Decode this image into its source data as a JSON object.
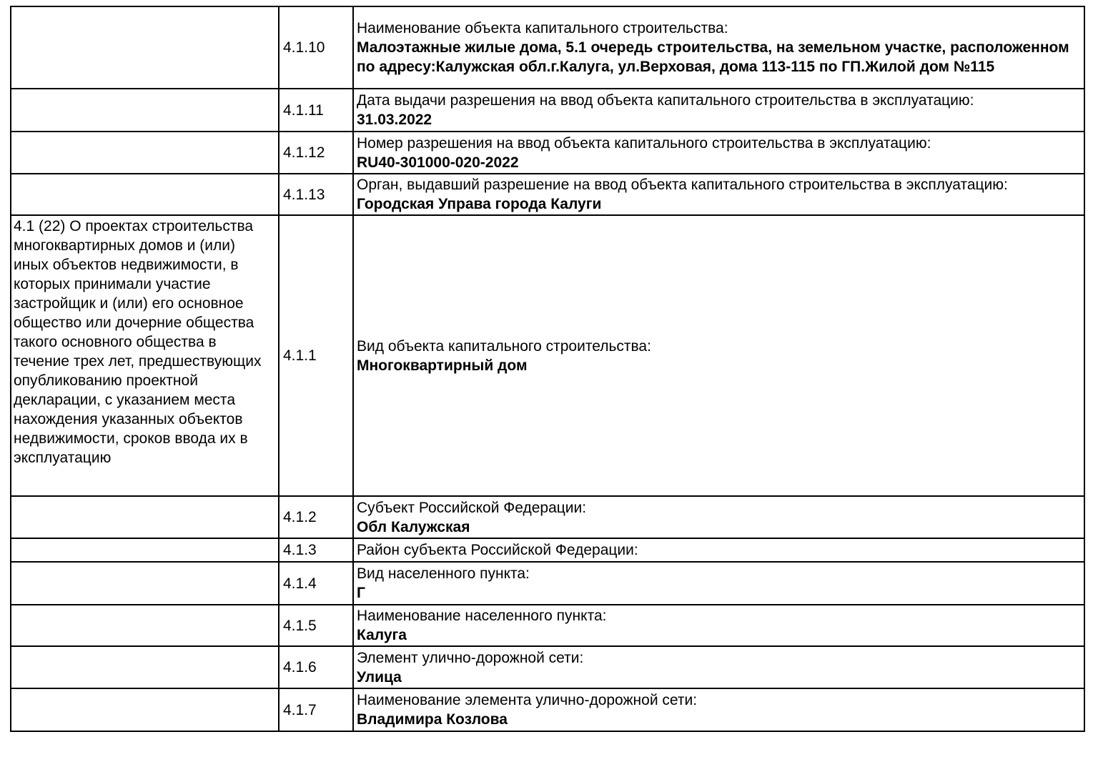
{
  "document": {
    "background_color": "#ffffff",
    "border_color": "#000000",
    "text_color": "#000000"
  },
  "left_note": {
    "text": "4.1 (22) О проектах строительства многоквартирных домов и (или) иных объектов недвижимости, в которых принимали участие застройщик и (или) его основное общество или дочерние общества такого основного общества в течение трех лет, предшествующих опубликованию проектной декларации, с указанием места нахождения указанных объектов недвижимости, сроков ввода их в эксплуатацию"
  },
  "rows": [
    {
      "code": "4.1.10",
      "label": "Наименование объекта капитального строительства:",
      "value": "Малоэтажные жилые дома, 5.1 очередь строительства, на земельном участке, расположенном по адресу:Калужская обл.г.Калуга, ул.Верховая, дома 113-115 по ГП.Жилой дом №115"
    },
    {
      "code": "4.1.11",
      "label": "Дата выдачи разрешения на ввод объекта капитального строительства в эксплуатацию:",
      "value": "31.03.2022"
    },
    {
      "code": "4.1.12",
      "label": "Номер разрешения на ввод объекта капитального строительства в эксплуатацию:",
      "value": "RU40-301000-020-2022"
    },
    {
      "code": "4.1.13",
      "label": "Орган, выдавший разрешение на ввод объекта капитального строительства в эксплуатацию:",
      "value": "Городская Управа города Калуги"
    },
    {
      "code": "4.1.1",
      "label": "Вид объекта капитального строительства:",
      "value": "Многоквартирный дом"
    },
    {
      "code": "4.1.2",
      "label": "Субъект Российской Федерации:",
      "value": "Обл Калужская"
    },
    {
      "code": "4.1.3",
      "label": "Район субъекта Российской Федерации:",
      "value": ""
    },
    {
      "code": "4.1.4",
      "label": "Вид населенного пункта:",
      "value": "Г"
    },
    {
      "code": "4.1.5",
      "label": "Наименование населенного пункта:",
      "value": "Калуга"
    },
    {
      "code": "4.1.6",
      "label": "Элемент улично-дорожной сети:",
      "value": "Улица"
    },
    {
      "code": "4.1.7",
      "label": "Наименование элемента улично-дорожной сети:",
      "value": "Владимира Козлова"
    }
  ]
}
